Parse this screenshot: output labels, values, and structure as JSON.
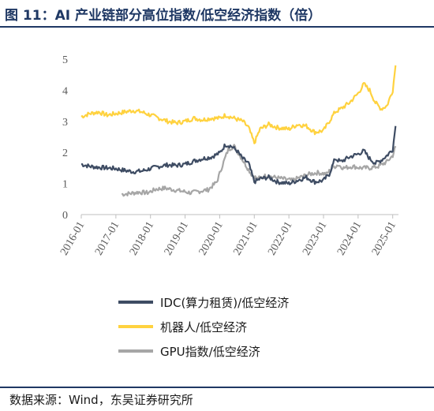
{
  "title": "图 11：AI 产业链部分高位指数/低空经济指数（倍）",
  "source": "数据来源：Wind，东吴证券研究所",
  "colors": {
    "idc": "#3e4c63",
    "robot": "#ffd23f",
    "gpu": "#a6a6a6",
    "axis": "#bfbfbf",
    "title": "#1f3864"
  },
  "chart_data": {
    "type": "line",
    "ylim": [
      0,
      5
    ],
    "yticks": [
      "0",
      "1",
      "2",
      "3",
      "4",
      "5"
    ],
    "xticks": [
      "2016-01",
      "2017-01",
      "2018-01",
      "2019-01",
      "2020-01",
      "2021-01",
      "2022-01",
      "2023-01",
      "2024-01",
      "2025-01"
    ],
    "xlim": [
      "2016-01",
      "2025-03"
    ],
    "series": [
      {
        "name": "IDC(算力租赁)/低空经济",
        "key": "idc",
        "points": [
          [
            "2016-01",
            1.62
          ],
          [
            "2016-04",
            1.55
          ],
          [
            "2016-07",
            1.52
          ],
          [
            "2016-10",
            1.5
          ],
          [
            "2017-01",
            1.48
          ],
          [
            "2017-04",
            1.42
          ],
          [
            "2017-07",
            1.38
          ],
          [
            "2017-10",
            1.4
          ],
          [
            "2018-01",
            1.48
          ],
          [
            "2018-04",
            1.55
          ],
          [
            "2018-07",
            1.6
          ],
          [
            "2018-10",
            1.58
          ],
          [
            "2019-01",
            1.62
          ],
          [
            "2019-04",
            1.72
          ],
          [
            "2019-07",
            1.8
          ],
          [
            "2019-10",
            1.85
          ],
          [
            "2020-01",
            1.98
          ],
          [
            "2020-03",
            2.25
          ],
          [
            "2020-05",
            2.2
          ],
          [
            "2020-07",
            2.05
          ],
          [
            "2020-09",
            1.8
          ],
          [
            "2020-11",
            1.65
          ],
          [
            "2021-01",
            1.05
          ],
          [
            "2021-03",
            1.15
          ],
          [
            "2021-06",
            1.2
          ],
          [
            "2021-09",
            1.05
          ],
          [
            "2022-01",
            1.0
          ],
          [
            "2022-04",
            1.1
          ],
          [
            "2022-07",
            1.2
          ],
          [
            "2022-10",
            1.05
          ],
          [
            "2023-01",
            1.1
          ],
          [
            "2023-03",
            1.3
          ],
          [
            "2023-05",
            1.8
          ],
          [
            "2023-07",
            1.7
          ],
          [
            "2023-10",
            1.85
          ],
          [
            "2024-01",
            1.95
          ],
          [
            "2024-03",
            2.05
          ],
          [
            "2024-05",
            1.8
          ],
          [
            "2024-07",
            1.65
          ],
          [
            "2024-09",
            1.75
          ],
          [
            "2024-11",
            1.9
          ],
          [
            "2025-01",
            2.1
          ],
          [
            "2025-02",
            2.85
          ]
        ]
      },
      {
        "name": "机器人/低空经济",
        "key": "robot",
        "points": [
          [
            "2016-01",
            3.15
          ],
          [
            "2016-04",
            3.25
          ],
          [
            "2016-07",
            3.3
          ],
          [
            "2016-10",
            3.2
          ],
          [
            "2017-01",
            3.25
          ],
          [
            "2017-04",
            3.3
          ],
          [
            "2017-07",
            3.35
          ],
          [
            "2017-10",
            3.3
          ],
          [
            "2018-01",
            3.2
          ],
          [
            "2018-04",
            3.1
          ],
          [
            "2018-07",
            3.0
          ],
          [
            "2018-10",
            2.95
          ],
          [
            "2019-01",
            3.0
          ],
          [
            "2019-04",
            3.1
          ],
          [
            "2019-07",
            3.05
          ],
          [
            "2019-10",
            3.1
          ],
          [
            "2020-01",
            3.1
          ],
          [
            "2020-03",
            3.2
          ],
          [
            "2020-06",
            3.1
          ],
          [
            "2020-09",
            3.0
          ],
          [
            "2020-11",
            2.8
          ],
          [
            "2021-01",
            2.3
          ],
          [
            "2021-03",
            2.75
          ],
          [
            "2021-06",
            2.9
          ],
          [
            "2021-09",
            2.8
          ],
          [
            "2022-01",
            2.75
          ],
          [
            "2022-04",
            2.9
          ],
          [
            "2022-07",
            2.85
          ],
          [
            "2022-10",
            2.65
          ],
          [
            "2023-01",
            2.7
          ],
          [
            "2023-03",
            3.0
          ],
          [
            "2023-05",
            3.3
          ],
          [
            "2023-07",
            3.4
          ],
          [
            "2023-10",
            3.6
          ],
          [
            "2024-01",
            3.9
          ],
          [
            "2024-03",
            4.2
          ],
          [
            "2024-05",
            4.0
          ],
          [
            "2024-07",
            3.6
          ],
          [
            "2024-09",
            3.4
          ],
          [
            "2024-11",
            3.5
          ],
          [
            "2025-01",
            4.0
          ],
          [
            "2025-02",
            4.8
          ]
        ]
      },
      {
        "name": "GPU指数/低空经济",
        "key": "gpu",
        "points": [
          [
            "2017-03",
            0.65
          ],
          [
            "2017-06",
            0.68
          ],
          [
            "2017-09",
            0.72
          ],
          [
            "2017-12",
            0.7
          ],
          [
            "2018-03",
            0.82
          ],
          [
            "2018-06",
            0.85
          ],
          [
            "2018-09",
            0.8
          ],
          [
            "2018-12",
            0.75
          ],
          [
            "2019-03",
            0.7
          ],
          [
            "2019-06",
            0.75
          ],
          [
            "2019-09",
            0.8
          ],
          [
            "2019-12",
            1.05
          ],
          [
            "2020-02",
            1.6
          ],
          [
            "2020-04",
            2.1
          ],
          [
            "2020-06",
            2.2
          ],
          [
            "2020-08",
            1.9
          ],
          [
            "2020-10",
            1.6
          ],
          [
            "2020-12",
            1.3
          ],
          [
            "2021-02",
            1.15
          ],
          [
            "2021-05",
            1.25
          ],
          [
            "2021-08",
            1.2
          ],
          [
            "2021-11",
            1.15
          ],
          [
            "2022-02",
            1.1
          ],
          [
            "2022-05",
            1.2
          ],
          [
            "2022-08",
            1.3
          ],
          [
            "2022-11",
            1.35
          ],
          [
            "2023-02",
            1.3
          ],
          [
            "2023-04",
            1.5
          ],
          [
            "2023-06",
            1.6
          ],
          [
            "2023-08",
            1.5
          ],
          [
            "2023-11",
            1.55
          ],
          [
            "2024-02",
            1.5
          ],
          [
            "2024-05",
            1.5
          ],
          [
            "2024-08",
            1.55
          ],
          [
            "2024-11",
            1.7
          ],
          [
            "2025-01",
            1.9
          ],
          [
            "2025-02",
            2.2
          ]
        ]
      }
    ]
  }
}
